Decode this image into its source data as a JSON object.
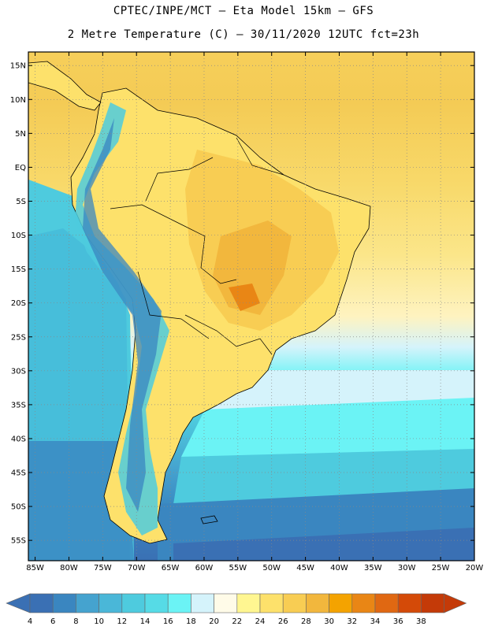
{
  "header": {
    "title_line1": "CPTEC/INPE/MCT –  Eta Model 15km – GFS",
    "title_line2": "2 Metre Temperature (C) – 30/11/2020 12UTC fct=23h"
  },
  "map": {
    "lon_range": [
      -86,
      -20
    ],
    "lat_range": [
      -58,
      17
    ],
    "lat_labels": [
      {
        "lat": 15,
        "label": "15N"
      },
      {
        "lat": 10,
        "label": "10N"
      },
      {
        "lat": 5,
        "label": "5N"
      },
      {
        "lat": 0,
        "label": "EQ"
      },
      {
        "lat": -5,
        "label": "5S"
      },
      {
        "lat": -10,
        "label": "10S"
      },
      {
        "lat": -15,
        "label": "15S"
      },
      {
        "lat": -20,
        "label": "20S"
      },
      {
        "lat": -25,
        "label": "25S"
      },
      {
        "lat": -30,
        "label": "30S"
      },
      {
        "lat": -35,
        "label": "35S"
      },
      {
        "lat": -40,
        "label": "40S"
      },
      {
        "lat": -45,
        "label": "45S"
      },
      {
        "lat": -50,
        "label": "50S"
      },
      {
        "lat": -55,
        "label": "55S"
      }
    ],
    "lon_labels": [
      {
        "lon": -85,
        "label": "85W"
      },
      {
        "lon": -80,
        "label": "80W"
      },
      {
        "lon": -75,
        "label": "75W"
      },
      {
        "lon": -70,
        "label": "70W"
      },
      {
        "lon": -65,
        "label": "65W"
      },
      {
        "lon": -60,
        "label": "60W"
      },
      {
        "lon": -55,
        "label": "55W"
      },
      {
        "lon": -50,
        "label": "50W"
      },
      {
        "lon": -45,
        "label": "45W"
      },
      {
        "lon": -40,
        "label": "40W"
      },
      {
        "lon": -35,
        "label": "35W"
      },
      {
        "lon": -30,
        "label": "30W"
      },
      {
        "lon": -25,
        "label": "25W"
      },
      {
        "lon": -20,
        "label": "20W"
      }
    ]
  },
  "legend": {
    "values": [
      4,
      6,
      8,
      10,
      12,
      14,
      16,
      18,
      20,
      22,
      24,
      26,
      28,
      30,
      32,
      34,
      36,
      38
    ],
    "colors": [
      "#3a70b4",
      "#3a86c0",
      "#45a3cf",
      "#4ab7d8",
      "#4ecbde",
      "#56dbe6",
      "#6bf3f5",
      "#d5f3fb",
      "#fffbe8",
      "#fff691",
      "#fde16b",
      "#f8cd53",
      "#f2b73d",
      "#f4a300",
      "#e98615",
      "#e06812",
      "#d44a08",
      "#c43a08"
    ]
  }
}
